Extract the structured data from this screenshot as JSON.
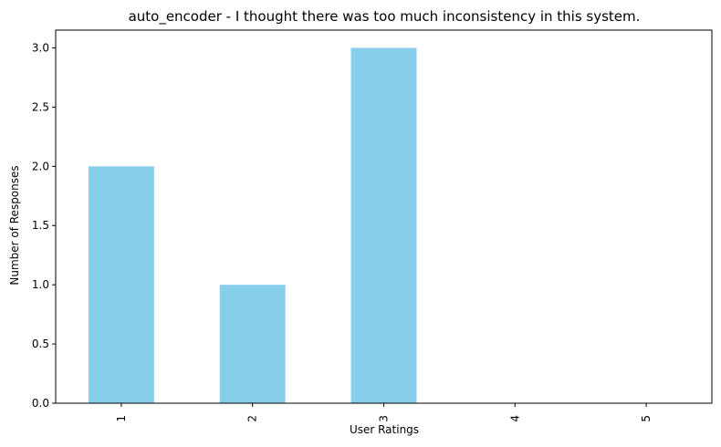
{
  "chart_data": {
    "type": "bar",
    "title": "auto_encoder - I thought there was too much inconsistency in this system.",
    "xlabel": "User Ratings",
    "ylabel": "Number of Responses",
    "categories": [
      "1",
      "2",
      "3",
      "4",
      "5"
    ],
    "values": [
      2,
      1,
      3,
      0,
      0
    ],
    "ylim": [
      0,
      3.15
    ],
    "yticks": [
      "0.0",
      "0.5",
      "1.0",
      "1.5",
      "2.0",
      "2.5",
      "3.0"
    ],
    "ytick_values": [
      0,
      0.5,
      1.0,
      1.5,
      2.0,
      2.5,
      3.0
    ],
    "bar_color": "#87ceeb",
    "grid": false,
    "legend": "none"
  }
}
